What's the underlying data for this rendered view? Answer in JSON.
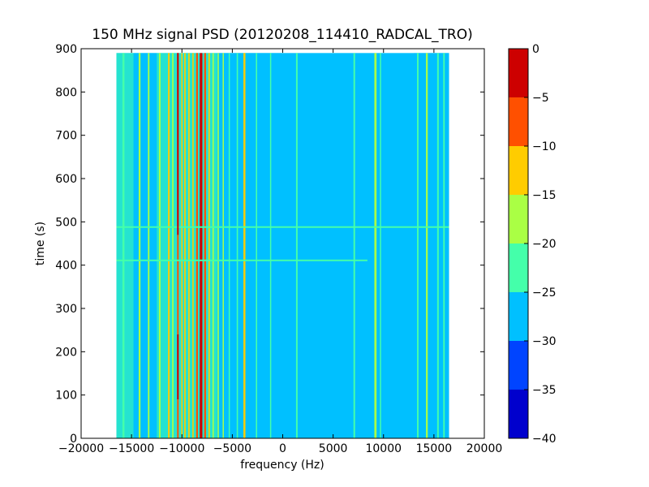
{
  "chart_data": {
    "type": "heatmap",
    "title": "150 MHz signal PSD (20120208_114410_RADCAL_TRO)",
    "xlabel": "frequency (Hz)",
    "ylabel": "time (s)",
    "xlim": [
      -20000,
      20000
    ],
    "ylim": [
      0,
      900
    ],
    "x_ticks": [
      -20000,
      -15000,
      -10000,
      -5000,
      0,
      5000,
      10000,
      15000,
      20000
    ],
    "x_tick_labels": [
      "−20000",
      "−15000",
      "−10000",
      "−5000",
      "0",
      "5000",
      "10000",
      "15000",
      "20000"
    ],
    "y_ticks": [
      0,
      100,
      200,
      300,
      400,
      500,
      600,
      700,
      800,
      900
    ],
    "y_tick_labels": [
      "0",
      "100",
      "200",
      "300",
      "400",
      "500",
      "600",
      "700",
      "800",
      "900"
    ],
    "data_extent": {
      "freq_min": -16500,
      "freq_max": 16500,
      "time_min": 0,
      "time_max": 890
    },
    "background_level": -28,
    "colorbar": {
      "levels": [
        -40,
        -35,
        -30,
        -25,
        -20,
        -15,
        -10,
        -5,
        0
      ],
      "tick_labels": [
        "−40",
        "−35",
        "−30",
        "−25",
        "−20",
        "−15",
        "−10",
        "−5",
        "0"
      ],
      "colors": [
        "#0000cd",
        "#0044ff",
        "#00c0ff",
        "#44ffaa",
        "#aaff44",
        "#ffcc00",
        "#ff5000",
        "#cd0000"
      ]
    },
    "features": [
      {
        "kind": "vband",
        "f0": -16500,
        "f1": -14800,
        "level": -24
      },
      {
        "kind": "vband",
        "f0": -14800,
        "f1": -12500,
        "level": -26
      },
      {
        "kind": "vband",
        "f0": -12500,
        "f1": -6500,
        "level": -22
      },
      {
        "kind": "vband",
        "f0": -6500,
        "f1": -3000,
        "level": -26
      },
      {
        "kind": "vband",
        "f0": -3000,
        "f1": 0,
        "level": -27
      },
      {
        "kind": "vband",
        "f0": 13000,
        "f1": 16500,
        "level": -25
      },
      {
        "kind": "line",
        "f": -15800,
        "width": 200,
        "level": -22
      },
      {
        "kind": "line",
        "f": -14200,
        "width": 180,
        "level": -17
      },
      {
        "kind": "line",
        "f": -13300,
        "width": 150,
        "level": -19
      },
      {
        "kind": "line",
        "f": -12200,
        "width": 160,
        "level": -18
      },
      {
        "kind": "line",
        "f": -11300,
        "width": 160,
        "level": -13
      },
      {
        "kind": "line",
        "f": -10900,
        "width": 140,
        "level": -16
      },
      {
        "kind": "line",
        "f": -10400,
        "width": 160,
        "level": -8
      },
      {
        "kind": "line",
        "f": -10000,
        "width": 120,
        "level": -14
      },
      {
        "kind": "line",
        "f": -9700,
        "width": 140,
        "level": -12
      },
      {
        "kind": "line",
        "f": -9300,
        "width": 140,
        "level": -11
      },
      {
        "kind": "line",
        "f": -8900,
        "width": 130,
        "level": -13
      },
      {
        "kind": "line",
        "f": -8500,
        "width": 180,
        "level": -7
      },
      {
        "kind": "line",
        "f": -8100,
        "width": 260,
        "level": -2
      },
      {
        "kind": "line",
        "f": -7700,
        "width": 180,
        "level": -9
      },
      {
        "kind": "line",
        "f": -7300,
        "width": 140,
        "level": -13
      },
      {
        "kind": "line",
        "f": -6900,
        "width": 130,
        "level": -16
      },
      {
        "kind": "line",
        "f": -6400,
        "width": 130,
        "level": -18
      },
      {
        "kind": "line",
        "f": -5900,
        "width": 120,
        "level": -19
      },
      {
        "kind": "line",
        "f": -5300,
        "width": 120,
        "level": -21
      },
      {
        "kind": "line",
        "f": -4500,
        "width": 130,
        "level": -22
      },
      {
        "kind": "line",
        "f": -3800,
        "width": 200,
        "level": -14
      },
      {
        "kind": "line",
        "f": -2600,
        "width": 130,
        "level": -23
      },
      {
        "kind": "line",
        "f": -1200,
        "width": 120,
        "level": -23
      },
      {
        "kind": "line",
        "f": 1400,
        "width": 160,
        "level": -21
      },
      {
        "kind": "line",
        "f": 7100,
        "width": 160,
        "level": -21
      },
      {
        "kind": "line",
        "f": 9200,
        "width": 220,
        "level": -18
      },
      {
        "kind": "line",
        "f": 9700,
        "width": 120,
        "level": -23
      },
      {
        "kind": "line",
        "f": 13400,
        "width": 160,
        "level": -22
      },
      {
        "kind": "line",
        "f": 14300,
        "width": 180,
        "level": -19
      },
      {
        "kind": "line",
        "f": 15400,
        "width": 160,
        "level": -21
      },
      {
        "kind": "line",
        "f": 16000,
        "width": 150,
        "level": -23
      },
      {
        "kind": "hline",
        "t": 488,
        "f0": -16500,
        "f1": 16500,
        "level": -23
      },
      {
        "kind": "hline",
        "t": 411,
        "f0": -16500,
        "f1": 8400,
        "level": -23
      },
      {
        "kind": "segment",
        "f": -10400,
        "t0": 470,
        "t1": 890,
        "level": -2
      },
      {
        "kind": "segment",
        "f": -10400,
        "t0": 90,
        "t1": 240,
        "level": -3
      }
    ]
  }
}
